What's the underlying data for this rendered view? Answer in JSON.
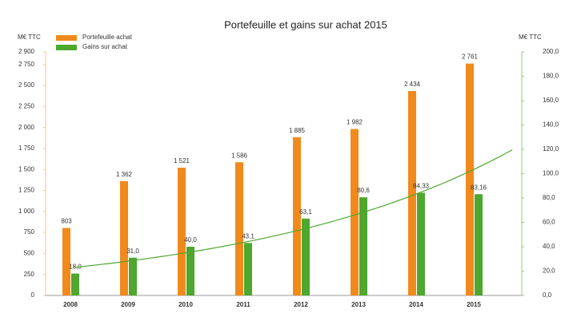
{
  "chart_data": {
    "type": "bar",
    "title": "Portefeuille et gains sur achat 2015",
    "y_label": "M€ TTC",
    "y2_label": "M€ TTC",
    "categories": [
      "2008",
      "2009",
      "2010",
      "2011",
      "2012",
      "2013",
      "2014",
      "2015"
    ],
    "series": [
      {
        "name": "Portefeuille achat",
        "color": "#f08a1c",
        "values": [
          803,
          1362,
          1521,
          1586,
          1885,
          1982,
          2434,
          2761
        ],
        "value_labels": [
          "803",
          "1 362",
          "1 521",
          "1 586",
          "1 885",
          "1 982",
          "2 434",
          "2 761"
        ]
      },
      {
        "name": "Gains sur achat",
        "color": "#4ea72e",
        "axis": "y2",
        "trendline": "exponential",
        "values": [
          18.0,
          31.0,
          40.0,
          43.1,
          63.1,
          80.6,
          84.33,
          83.16
        ],
        "value_labels": [
          "18,0",
          "31,0",
          "40,0",
          "43,1",
          "63,1",
          "80,6",
          "84,33",
          "83,16"
        ]
      }
    ],
    "ylim": [
      0,
      2900
    ],
    "yticks": [
      0,
      250,
      500,
      750,
      {
        "value": 1000,
        "label": "1 000"
      },
      {
        "value": 1250,
        "label": "1 250"
      },
      {
        "value": 1500,
        "label": "1 500"
      },
      {
        "value": 1750,
        "label": "1 750"
      },
      {
        "value": 2000,
        "label": "2 000"
      },
      {
        "value": 2250,
        "label": "2 250"
      },
      {
        "value": 2500,
        "label": "2 500"
      },
      {
        "value": 2750,
        "label": "2 750"
      },
      {
        "value": 2900,
        "label": "2 900"
      }
    ],
    "y2lim": [
      0,
      200
    ],
    "y2ticks": [
      {
        "value": 0,
        "label": "0,0"
      },
      {
        "value": 20,
        "label": "20,0"
      },
      {
        "value": 40,
        "label": "40,0"
      },
      {
        "value": 60,
        "label": "60,0"
      },
      {
        "value": 80,
        "label": "80,0"
      },
      {
        "value": 100,
        "label": "100,0"
      },
      {
        "value": 120,
        "label": "120,0"
      },
      {
        "value": 140,
        "label": "140,0"
      },
      {
        "value": 160,
        "label": "160,0"
      },
      {
        "value": 180,
        "label": "180,0"
      },
      {
        "value": 200,
        "label": "200,0"
      }
    ],
    "legend": "top-left",
    "grid": false
  }
}
